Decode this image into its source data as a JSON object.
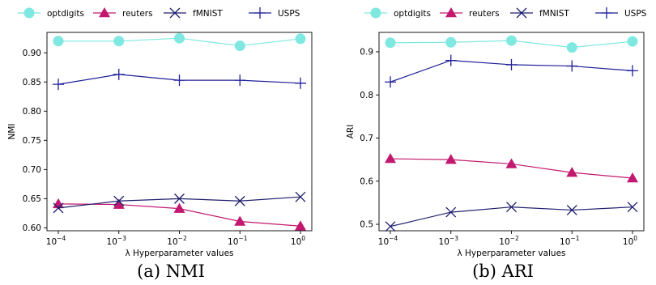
{
  "chart_data": [
    {
      "type": "line",
      "caption": "(a) NMI",
      "xlabel": "λ Hyperparameter values",
      "ylabel": "NMI",
      "x": [
        "10^-4",
        "10^-3",
        "10^-2",
        "10^-1",
        "10^0"
      ],
      "x_tick_labels": [
        {
          "base": "10",
          "exp": "−4"
        },
        {
          "base": "10",
          "exp": "−3"
        },
        {
          "base": "10",
          "exp": "−2"
        },
        {
          "base": "10",
          "exp": "−1"
        },
        {
          "base": "10",
          "exp": "0"
        }
      ],
      "ylim": [
        0.595,
        0.935
      ],
      "yticks": [
        0.6,
        0.65,
        0.7,
        0.75,
        0.8,
        0.85,
        0.9
      ],
      "ytick_labels": [
        "0.60",
        "0.65",
        "0.70",
        "0.75",
        "0.80",
        "0.85",
        "0.90"
      ],
      "grid": false,
      "legend": "top, outside",
      "series": [
        {
          "name": "optdigits",
          "marker": "circle",
          "color": "#7fe8e0",
          "values": [
            0.92,
            0.92,
            0.925,
            0.912,
            0.924
          ]
        },
        {
          "name": "reuters",
          "marker": "triangle",
          "color": "#c2186f",
          "values": [
            0.641,
            0.64,
            0.633,
            0.611,
            0.603
          ]
        },
        {
          "name": "fMNIST",
          "marker": "x",
          "color": "#1f1f6e",
          "values": [
            0.634,
            0.646,
            0.65,
            0.646,
            0.653
          ]
        },
        {
          "name": "USPS",
          "marker": "plus",
          "color": "#1f1f9a",
          "values": [
            0.846,
            0.863,
            0.853,
            0.853,
            0.848
          ]
        }
      ]
    },
    {
      "type": "line",
      "caption": "(b) ARI",
      "xlabel": "λ Hyperparameter values",
      "ylabel": "ARI",
      "x": [
        "10^-4",
        "10^-3",
        "10^-2",
        "10^-1",
        "10^0"
      ],
      "x_tick_labels": [
        {
          "base": "10",
          "exp": "−4"
        },
        {
          "base": "10",
          "exp": "−3"
        },
        {
          "base": "10",
          "exp": "−2"
        },
        {
          "base": "10",
          "exp": "−1"
        },
        {
          "base": "10",
          "exp": "0"
        }
      ],
      "ylim": [
        0.485,
        0.945
      ],
      "yticks": [
        0.5,
        0.6,
        0.7,
        0.8,
        0.9
      ],
      "ytick_labels": [
        "0.5",
        "0.6",
        "0.7",
        "0.8",
        "0.9"
      ],
      "grid": false,
      "legend": "top, outside",
      "series": [
        {
          "name": "optdigits",
          "marker": "circle",
          "color": "#7fe8e0",
          "values": [
            0.921,
            0.922,
            0.926,
            0.91,
            0.924
          ]
        },
        {
          "name": "reuters",
          "marker": "triangle",
          "color": "#c2186f",
          "values": [
            0.652,
            0.65,
            0.64,
            0.62,
            0.607
          ]
        },
        {
          "name": "fMNIST",
          "marker": "x",
          "color": "#1f1f6e",
          "values": [
            0.495,
            0.528,
            0.54,
            0.533,
            0.54
          ]
        },
        {
          "name": "USPS",
          "marker": "plus",
          "color": "#1f1f9a",
          "values": [
            0.83,
            0.88,
            0.87,
            0.867,
            0.856
          ]
        }
      ]
    }
  ]
}
